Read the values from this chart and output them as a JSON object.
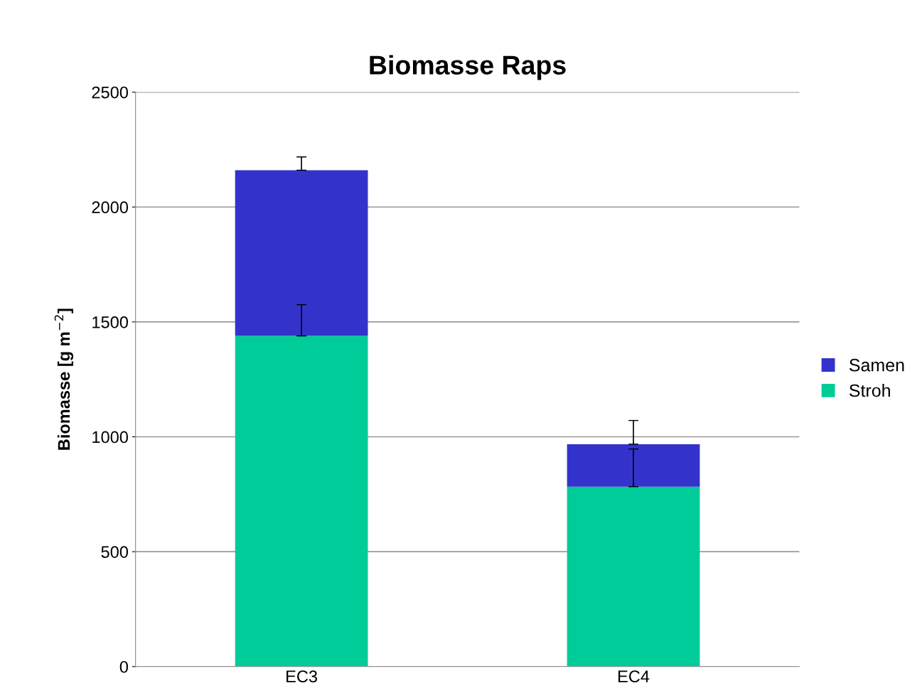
{
  "chart_data": {
    "type": "bar",
    "title": "Biomasse Raps",
    "ylabel": "Biomasse [g m$^{−2}$]",
    "categories": [
      "EC3",
      "EC4"
    ],
    "stacked": true,
    "series": [
      {
        "name": "Stroh",
        "color": "#00cc99",
        "values": [
          1439,
          783
        ],
        "errors": [
          [
            1439,
            1575
          ],
          [
            783,
            947
          ]
        ]
      },
      {
        "name": "Samen",
        "color": "#3333cc",
        "values": [
          721,
          185
        ],
        "errors": [
          [
            2160,
            2218
          ],
          [
            968,
            1071
          ]
        ]
      }
    ],
    "ylim": [
      0,
      2500
    ],
    "yticks": [
      0,
      500,
      1000,
      1500,
      2000,
      2500
    ],
    "grid": "y",
    "legend": "right"
  }
}
